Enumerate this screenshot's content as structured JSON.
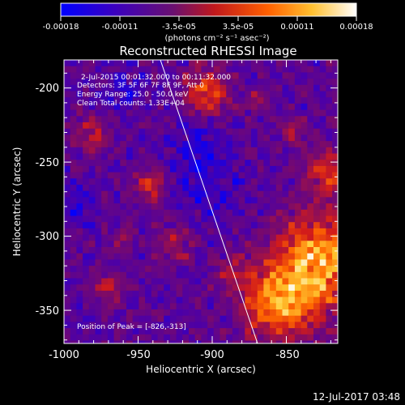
{
  "colorbar": {
    "ticks": [
      "-0.00018",
      "-0.00011",
      "-3.5e-05",
      "3.5e-05",
      "0.00011",
      "0.00018"
    ],
    "units_label": "(photons cm⁻² s⁻¹ asec⁻²)",
    "colors": [
      "#0000ff",
      "#4b00a8",
      "#7a0a6a",
      "#d11b1b",
      "#ff6a00",
      "#ffcc33",
      "#ffffff"
    ]
  },
  "plot": {
    "title": "Reconstructed RHESSI Image",
    "info_lines": [
      "2-Jul-2015 00:01:32.000 to 00:11:32.000",
      "Detectors: 3F 5F 6F 7F 8F 9F, Att 0",
      "Energy Range: 25.0 - 50.0 keV",
      "Clean    Total counts: 1.33E+04"
    ],
    "peak_label": "Position of Peak = [-826,-313]",
    "x_axis": {
      "label": "Heliocentric X (arcsec)",
      "ticks": [
        "-1000",
        "-950",
        "-900",
        "-850"
      ]
    },
    "y_axis": {
      "label": "Heliocentric Y (arcsec)",
      "ticks": [
        "-200",
        "-250",
        "-300",
        "-350"
      ]
    }
  },
  "footer": {
    "timestamp": "12-Jul-2017 03:48"
  }
}
